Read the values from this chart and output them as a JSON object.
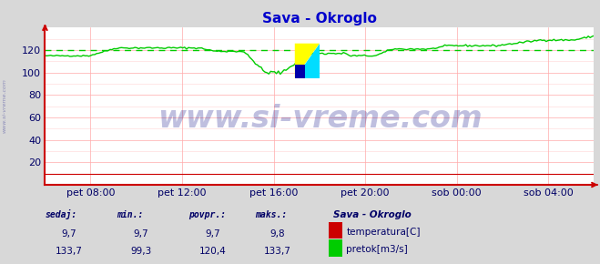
{
  "title": "Sava - Okroglo",
  "title_color": "#0000cc",
  "bg_color": "#d8d8d8",
  "plot_bg_color": "#ffffff",
  "grid_color_major": "#ffaaaa",
  "grid_color_minor": "#ffdddd",
  "xlabel_color": "#000066",
  "ylabel_color": "#000066",
  "axis_color": "#cc0000",
  "x_tick_labels": [
    "pet 08:00",
    "pet 12:00",
    "pet 16:00",
    "pet 20:00",
    "sob 00:00",
    "sob 04:00"
  ],
  "x_tick_positions": [
    0.083,
    0.25,
    0.417,
    0.583,
    0.75,
    0.917
  ],
  "ylim": [
    0,
    140
  ],
  "yticks": [
    20,
    40,
    60,
    80,
    100,
    120
  ],
  "ylabel_fontsize": 8,
  "xlabel_fontsize": 8,
  "title_fontsize": 11,
  "watermark": "www.si-vreme.com",
  "watermark_color": "#000080",
  "watermark_alpha": 0.25,
  "watermark_fontsize": 24,
  "dashed_line_y": 120,
  "dashed_line_color": "#00cc00",
  "temperature_color": "#cc0000",
  "flow_color": "#00cc00",
  "sidebar_text_color": "#000066",
  "legend_title": "Sava - Okroglo",
  "legend_title_color": "#000066",
  "legend_rows": [
    {
      "label": "temperatura[C]",
      "color": "#cc0000"
    },
    {
      "label": "pretok[m3/s]",
      "color": "#00cc00"
    }
  ],
  "stats_headers": [
    "sedaj:",
    "min.:",
    "povpr.:",
    "maks.:"
  ],
  "stats_temp": [
    "9,7",
    "9,7",
    "9,7",
    "9,8"
  ],
  "stats_flow": [
    "133,7",
    "99,3",
    "120,4",
    "133,7"
  ],
  "num_points": 288,
  "temp_value": 9.7,
  "logo_yellow": "#ffff00",
  "logo_cyan": "#00ddff",
  "logo_blue": "#0000aa"
}
